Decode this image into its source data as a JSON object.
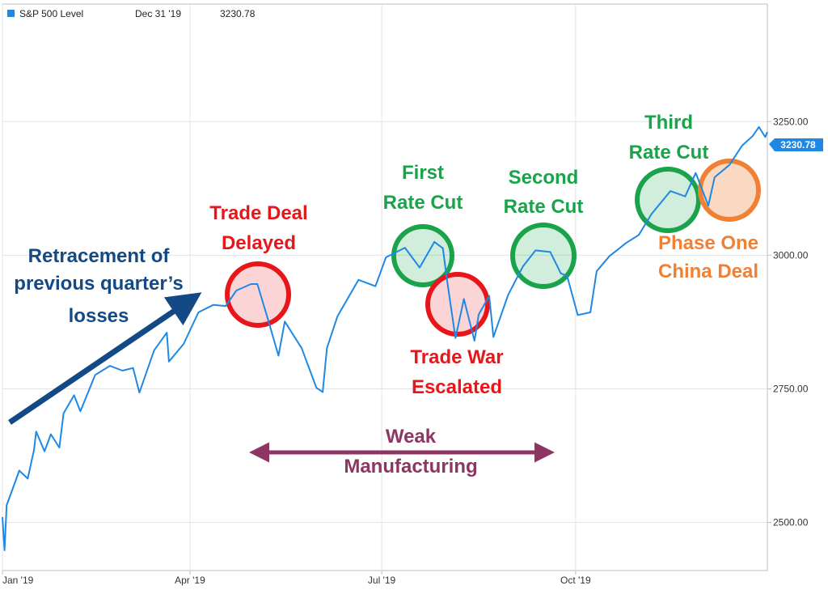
{
  "legend": {
    "series_name": "S&P 500 Level",
    "date": "Dec 31 '19",
    "value": "3230.78",
    "color": "#1f88e5"
  },
  "last_value_badge": "3230.78",
  "annotations": {
    "retracement_line1": "Retracement of",
    "retracement_line2": "previous quarter’s",
    "retracement_line3": "losses",
    "trade_deal_line1": "Trade Deal",
    "trade_deal_line2": "Delayed",
    "first_cut_line1": "First",
    "first_cut_line2": "Rate Cut",
    "trade_war_line1": "Trade War",
    "trade_war_line2": "Escalated",
    "second_cut_line1": "Second",
    "second_cut_line2": "Rate Cut",
    "third_cut_line1": "Third",
    "third_cut_line2": "Rate Cut",
    "phase_one_line1": "Phase One",
    "phase_one_line2": "China Deal",
    "weak_line1": "Weak",
    "weak_line2": "Manufacturing"
  },
  "colors": {
    "line": "#1f88e5",
    "red": "#e8161b",
    "green": "#1aa34a",
    "orange": "#ef8034",
    "navy": "#134a85",
    "purple": "#8e3563"
  },
  "chart_data": {
    "type": "line",
    "title": "",
    "xlabel": "",
    "ylabel": "",
    "x_ticks": [
      "Jan '19",
      "Apr '19",
      "Jul '19",
      "Oct '19"
    ],
    "y_ticks": [
      "2500.00",
      "2750.00",
      "3000.00",
      "3250.00"
    ],
    "y_tick_values": [
      2500,
      2750,
      3000,
      3250
    ],
    "ylim": [
      2410,
      3470
    ],
    "xlim": [
      "2019-01-02",
      "2019-12-31"
    ],
    "grid": true,
    "legend_position": "top-left",
    "series": [
      {
        "name": "S&P 500 Level",
        "points": [
          [
            "2019-01-02",
            2510
          ],
          [
            "2019-01-03",
            2448
          ],
          [
            "2019-01-04",
            2532
          ],
          [
            "2019-01-08",
            2575
          ],
          [
            "2019-01-10",
            2597
          ],
          [
            "2019-01-14",
            2582
          ],
          [
            "2019-01-17",
            2636
          ],
          [
            "2019-01-18",
            2670
          ],
          [
            "2019-01-22",
            2633
          ],
          [
            "2019-01-25",
            2665
          ],
          [
            "2019-01-29",
            2640
          ],
          [
            "2019-01-31",
            2704
          ],
          [
            "2019-02-05",
            2738
          ],
          [
            "2019-02-08",
            2708
          ],
          [
            "2019-02-15",
            2776
          ],
          [
            "2019-02-22",
            2793
          ],
          [
            "2019-02-28",
            2784
          ],
          [
            "2019-03-05",
            2789
          ],
          [
            "2019-03-08",
            2743
          ],
          [
            "2019-03-15",
            2822
          ],
          [
            "2019-03-21",
            2855
          ],
          [
            "2019-03-22",
            2801
          ],
          [
            "2019-03-29",
            2834
          ],
          [
            "2019-04-05",
            2893
          ],
          [
            "2019-04-12",
            2907
          ],
          [
            "2019-04-18",
            2905
          ],
          [
            "2019-04-23",
            2934
          ],
          [
            "2019-04-30",
            2946
          ],
          [
            "2019-05-03",
            2946
          ],
          [
            "2019-05-08",
            2880
          ],
          [
            "2019-05-13",
            2812
          ],
          [
            "2019-05-16",
            2876
          ],
          [
            "2019-05-24",
            2826
          ],
          [
            "2019-05-31",
            2752
          ],
          [
            "2019-06-03",
            2744
          ],
          [
            "2019-06-05",
            2826
          ],
          [
            "2019-06-10",
            2886
          ],
          [
            "2019-06-20",
            2954
          ],
          [
            "2019-06-28",
            2942
          ],
          [
            "2019-07-03",
            2996
          ],
          [
            "2019-07-12",
            3014
          ],
          [
            "2019-07-19",
            2977
          ],
          [
            "2019-07-26",
            3025
          ],
          [
            "2019-07-30",
            3013
          ],
          [
            "2019-08-01",
            2953
          ],
          [
            "2019-08-05",
            2845
          ],
          [
            "2019-08-09",
            2918
          ],
          [
            "2019-08-14",
            2840
          ],
          [
            "2019-08-16",
            2889
          ],
          [
            "2019-08-21",
            2924
          ],
          [
            "2019-08-23",
            2847
          ],
          [
            "2019-08-30",
            2926
          ],
          [
            "2019-09-06",
            2979
          ],
          [
            "2019-09-12",
            3009
          ],
          [
            "2019-09-19",
            3006
          ],
          [
            "2019-09-24",
            2966
          ],
          [
            "2019-09-27",
            2961
          ],
          [
            "2019-10-02",
            2888
          ],
          [
            "2019-10-08",
            2893
          ],
          [
            "2019-10-11",
            2970
          ],
          [
            "2019-10-17",
            2998
          ],
          [
            "2019-10-25",
            3023
          ],
          [
            "2019-10-31",
            3038
          ],
          [
            "2019-11-06",
            3077
          ],
          [
            "2019-11-15",
            3120
          ],
          [
            "2019-11-22",
            3110
          ],
          [
            "2019-11-27",
            3154
          ],
          [
            "2019-12-03",
            3093
          ],
          [
            "2019-12-06",
            3146
          ],
          [
            "2019-12-13",
            3169
          ],
          [
            "2019-12-19",
            3205
          ],
          [
            "2019-12-24",
            3223
          ],
          [
            "2019-12-27",
            3240
          ],
          [
            "2019-12-30",
            3221
          ],
          [
            "2019-12-31",
            3230.78
          ]
        ]
      }
    ]
  }
}
